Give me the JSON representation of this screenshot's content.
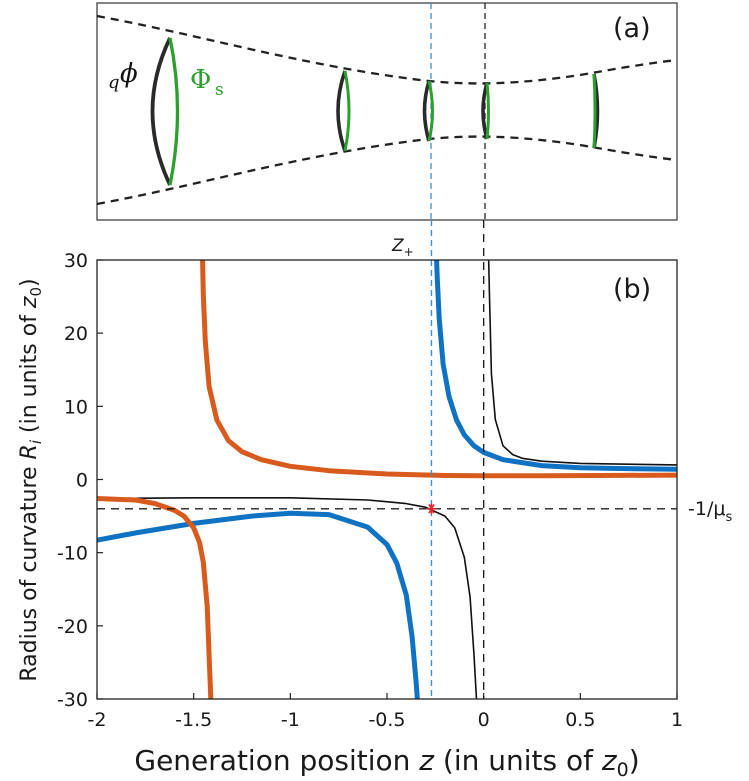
{
  "panel_a": {
    "label": "(a)",
    "phi_prefix": "q",
    "phi_symbol": "ϕ",
    "Phi_s_main": "Φ",
    "Phi_s_sub": "s",
    "colors": {
      "beam": "#222222",
      "phi": "#2a2a2a",
      "Phi_s": "#2ca02c",
      "z_plus_line": "#3b8fd0"
    }
  },
  "chart_data": {
    "type": "line",
    "panel_label": "(b)",
    "xlabel_prefix": "Generation position ",
    "xlabel_var": "z",
    "xlabel_suffix": " (in units of ",
    "xlabel_unit_base": "z",
    "xlabel_unit_sub": "0",
    "xlabel_close": ")",
    "ylabel_prefix": "Radius of curvature ",
    "ylabel_var": "R",
    "ylabel_var_sub": "i",
    "ylabel_suffix": " (in units of ",
    "ylabel_unit_base": "z",
    "ylabel_unit_sub": "0",
    "ylabel_close": ")",
    "xlim": [
      -2,
      1
    ],
    "ylim": [
      -30,
      30
    ],
    "xticks": [
      -2,
      -1.5,
      -1,
      -0.5,
      0,
      0.5,
      1
    ],
    "xtick_labels": [
      "-2",
      "-1.5",
      "-1",
      "-0.5",
      "0",
      "0.5",
      "1"
    ],
    "yticks": [
      30,
      20,
      10,
      0,
      -10,
      -20,
      -30
    ],
    "ytick_labels": [
      "30",
      "20",
      "10",
      "0",
      "-10",
      "-20",
      "-30"
    ],
    "z_plus": -0.27,
    "z_plus_label_main": "Z",
    "z_plus_label_sub": "+",
    "mu_s_level": -4,
    "mu_s_label": "-1/μ",
    "mu_s_label_sub": "s",
    "intersection_marker": {
      "x": -0.27,
      "y": -4,
      "color": "#e8222a"
    },
    "series": [
      {
        "name": "black",
        "color": "#111111",
        "pole": -0.02,
        "left": {
          "x": [
            -2,
            -1.5,
            -1,
            -0.6,
            -0.4,
            -0.3,
            -0.2,
            -0.15,
            -0.1,
            -0.07,
            -0.05,
            -0.035
          ],
          "y": [
            -2.6,
            -2.5,
            -2.5,
            -2.8,
            -3.3,
            -3.8,
            -5.0,
            -6.6,
            -10.6,
            -16.1,
            -24,
            -31
          ]
        },
        "right": {
          "x": [
            0.025,
            0.03,
            0.04,
            0.06,
            0.1,
            0.15,
            0.2,
            0.3,
            0.5,
            0.7,
            1.0
          ],
          "y": [
            31,
            25,
            14.5,
            8.2,
            4.6,
            3.4,
            2.9,
            2.5,
            2.2,
            2.1,
            2.0
          ]
        }
      },
      {
        "name": "blue",
        "color": "#1072c2",
        "pole": -0.25,
        "left": {
          "x": [
            -2,
            -1.8,
            -1.5,
            -1.2,
            -1.0,
            -0.8,
            -0.6,
            -0.5,
            -0.45,
            -0.4,
            -0.37,
            -0.35,
            -0.34
          ],
          "y": [
            -8.3,
            -7.3,
            -6.0,
            -5.0,
            -4.6,
            -4.8,
            -6.5,
            -8.9,
            -11.4,
            -15.8,
            -21.5,
            -27.5,
            -31
          ]
        },
        "right": {
          "x": [
            -0.245,
            -0.24,
            -0.23,
            -0.21,
            -0.18,
            -0.14,
            -0.1,
            -0.05,
            0,
            0.1,
            0.3,
            0.5,
            0.7,
            1.0
          ],
          "y": [
            31,
            27.4,
            22.0,
            15.8,
            11.4,
            8.1,
            6.1,
            4.6,
            3.7,
            2.7,
            1.9,
            1.6,
            1.5,
            1.4
          ]
        }
      },
      {
        "name": "orange",
        "color": "#d85a1c",
        "pole": -1.51,
        "left": {
          "x": [
            -2,
            -1.8,
            -1.7,
            -1.6,
            -1.55,
            -1.5,
            -1.47,
            -1.45,
            -1.43,
            -1.42,
            -1.41
          ],
          "y": [
            -2.6,
            -2.8,
            -3.3,
            -4.2,
            -5.0,
            -6.6,
            -8.6,
            -11.3,
            -17.3,
            -24,
            -31
          ]
        },
        "right": {
          "x": [
            -1.455,
            -1.45,
            -1.44,
            -1.42,
            -1.38,
            -1.32,
            -1.25,
            -1.15,
            -1.0,
            -0.8,
            -0.5,
            -0.2,
            0,
            0.3,
            0.6,
            1.0
          ],
          "y": [
            31,
            25.3,
            18.9,
            12.7,
            8.1,
            5.3,
            3.8,
            2.7,
            1.8,
            1.2,
            0.75,
            0.55,
            0.5,
            0.5,
            0.55,
            0.6
          ]
        }
      }
    ]
  }
}
